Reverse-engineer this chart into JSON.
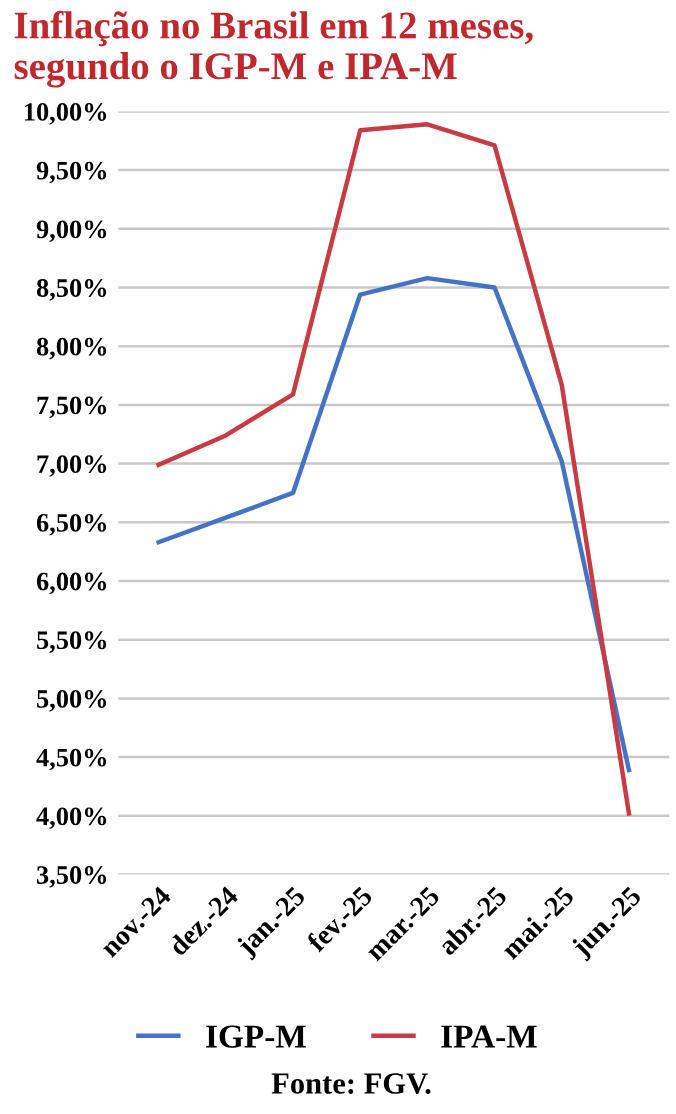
{
  "chart_data": {
    "type": "line",
    "title": "Inflação no Brasil em 12 meses,\nsegundo o IGP-M e IPA-M",
    "categories": [
      "nov.-24",
      "dez.-24",
      "jan.-25",
      "fev.-25",
      "mar.-25",
      "abr.-25",
      "mai.-25",
      "jun.-25"
    ],
    "series": [
      {
        "name": "IGP-M",
        "color": "#4472c4",
        "values": [
          6.33,
          6.54,
          6.75,
          8.44,
          8.58,
          8.5,
          7.02,
          4.39
        ]
      },
      {
        "name": "IPA-M",
        "color": "#c83a44",
        "values": [
          6.99,
          7.24,
          7.59,
          9.84,
          9.89,
          9.71,
          7.67,
          4.02
        ]
      }
    ],
    "ylim": [
      3.5,
      10
    ],
    "yticks": [
      {
        "value": 3.5,
        "label": "3,50%"
      },
      {
        "value": 4,
        "label": "4,00%"
      },
      {
        "value": 4.5,
        "label": "4,50%"
      },
      {
        "value": 5,
        "label": "5,00%"
      },
      {
        "value": 5.5,
        "label": "5,50%"
      },
      {
        "value": 6,
        "label": "6,00%"
      },
      {
        "value": 6.5,
        "label": "6,50%"
      },
      {
        "value": 7,
        "label": "7,00%"
      },
      {
        "value": 7.5,
        "label": "7,50%"
      },
      {
        "value": 8,
        "label": "8,00%"
      },
      {
        "value": 8.5,
        "label": "8,50%"
      },
      {
        "value": 9,
        "label": "9,00%"
      },
      {
        "value": 9.5,
        "label": "9,50%"
      },
      {
        "value": 10,
        "label": "10,00%"
      }
    ],
    "grid": "y",
    "legend": "bottom",
    "marker": "none",
    "line_style": "solid",
    "annotations": [
      "Fonte: FGV."
    ]
  }
}
